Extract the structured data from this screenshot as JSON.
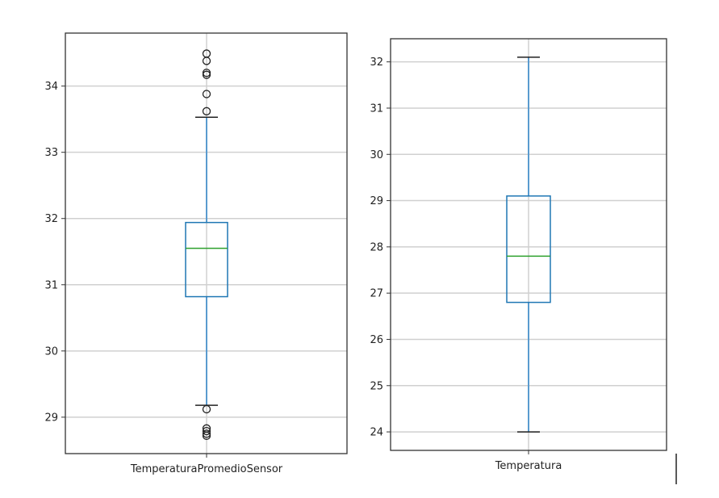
{
  "chart_data": [
    {
      "type": "box",
      "title": "",
      "xlabel": "",
      "ylabel": "",
      "categories": [
        "TemperaturaPromedioSensor"
      ],
      "ylim": [
        28.45,
        34.8
      ],
      "yticks": [
        29,
        30,
        31,
        32,
        33,
        34
      ],
      "grid": true,
      "box": {
        "whisker_low": 29.18,
        "q1": 30.82,
        "median": 31.55,
        "q3": 31.94,
        "whisker_high": 33.53,
        "outliers": [
          34.49,
          34.38,
          34.2,
          34.17,
          33.88,
          33.62,
          29.12,
          28.83,
          28.79,
          28.75,
          28.72
        ]
      }
    },
    {
      "type": "box",
      "title": "",
      "xlabel": "",
      "ylabel": "",
      "categories": [
        "Temperatura"
      ],
      "ylim": [
        23.6,
        32.5
      ],
      "yticks": [
        24,
        25,
        26,
        27,
        28,
        29,
        30,
        31,
        32
      ],
      "grid": true,
      "box": {
        "whisker_low": 24.0,
        "q1": 26.8,
        "median": 27.8,
        "q3": 29.1,
        "whisker_high": 32.1,
        "outliers": []
      }
    }
  ],
  "colors": {
    "box": "#1f77b4",
    "whisker": "#5a9bcf",
    "median": "#2ca02c",
    "cap": "#222222",
    "grid": "#d0d0d0",
    "axes": "#333333"
  }
}
